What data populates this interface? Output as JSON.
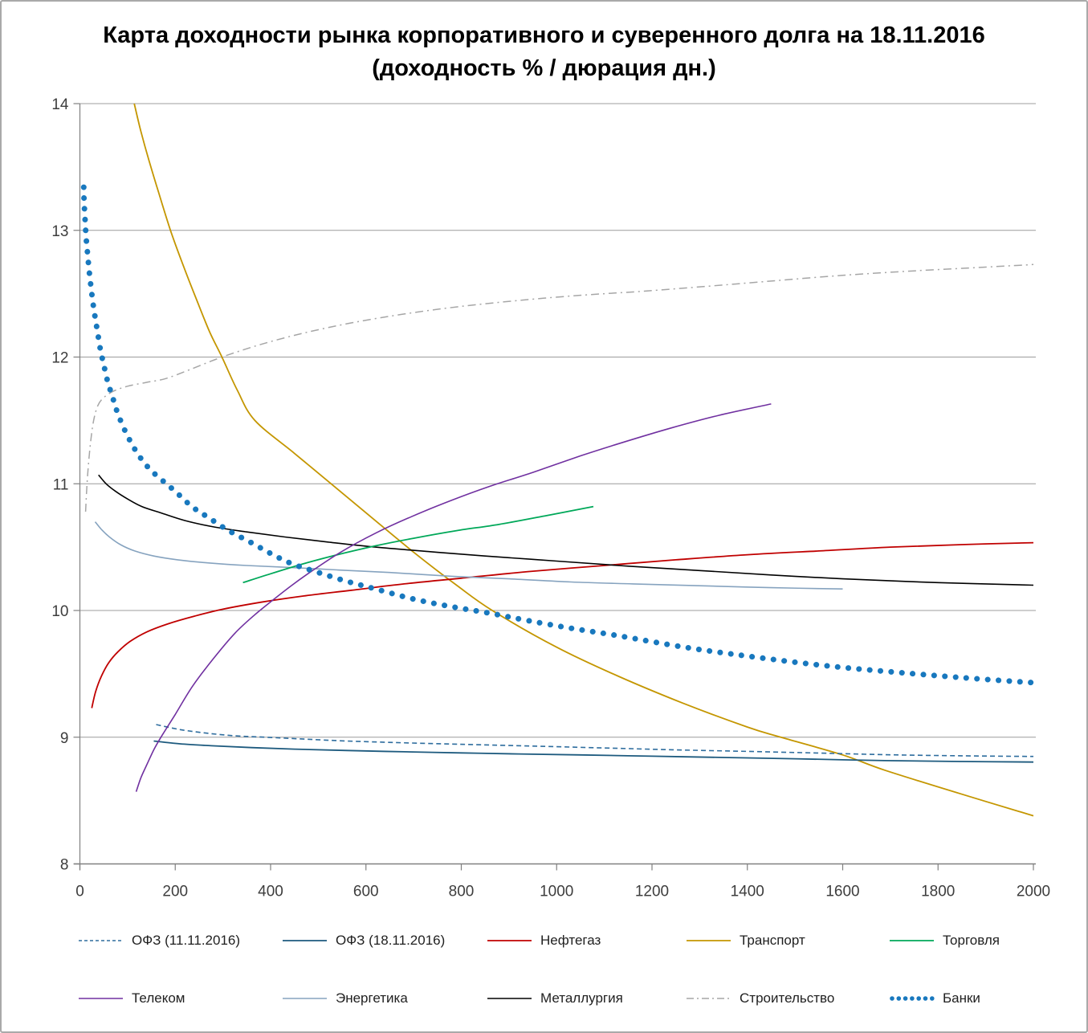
{
  "window": {
    "background": "#ffffff",
    "border_color": "#a9a9a9"
  },
  "chart_data": {
    "type": "line",
    "title": "Карта доходности рынка корпоративного и суверенного долга на 18.11.2016 (доходность % / дюрация дн.)",
    "xlabel": "",
    "ylabel": "",
    "xlim": [
      0,
      2000
    ],
    "ylim": [
      8,
      14
    ],
    "x_ticks": [
      0,
      200,
      400,
      600,
      800,
      1000,
      1200,
      1400,
      1600,
      1800,
      2000
    ],
    "y_ticks": [
      8,
      9,
      10,
      11,
      12,
      13,
      14
    ],
    "grid": true,
    "legend_position": "bottom",
    "axis_color": "#808080",
    "grid_color": "#9c9c9c",
    "tick_label_color": "#3d3d3d",
    "series": [
      {
        "id": "ofz-11",
        "name": "ОФЗ (11.11.2016)",
        "color": "#2E6D9E",
        "style": "dashed",
        "width": 1.6,
        "points": [
          [
            160,
            9.1
          ],
          [
            210,
            9.06
          ],
          [
            270,
            9.03
          ],
          [
            330,
            9.01
          ],
          [
            390,
            9.0
          ],
          [
            470,
            8.985
          ],
          [
            560,
            8.97
          ],
          [
            660,
            8.958
          ],
          [
            760,
            8.948
          ],
          [
            842,
            8.94
          ],
          [
            950,
            8.93
          ],
          [
            1100,
            8.915
          ],
          [
            1250,
            8.9
          ],
          [
            1400,
            8.888
          ],
          [
            1550,
            8.875
          ],
          [
            1688,
            8.862
          ],
          [
            1850,
            8.853
          ],
          [
            2000,
            8.848
          ]
        ]
      },
      {
        "id": "ofz-18",
        "name": "ОФЗ (18.11.2016)",
        "color": "#1D5A7E",
        "style": "solid",
        "width": 1.8,
        "points": [
          [
            155,
            8.97
          ],
          [
            210,
            8.948
          ],
          [
            280,
            8.932
          ],
          [
            360,
            8.918
          ],
          [
            450,
            8.906
          ],
          [
            560,
            8.895
          ],
          [
            680,
            8.885
          ],
          [
            800,
            8.876
          ],
          [
            920,
            8.868
          ],
          [
            1050,
            8.86
          ],
          [
            1200,
            8.85
          ],
          [
            1350,
            8.84
          ],
          [
            1500,
            8.83
          ],
          [
            1688,
            8.815
          ],
          [
            1850,
            8.808
          ],
          [
            2000,
            8.804
          ]
        ]
      },
      {
        "id": "neftegaz",
        "name": "Нефтегаз",
        "color": "#C00000",
        "style": "solid",
        "width": 1.8,
        "points": [
          [
            25,
            9.23
          ],
          [
            33,
            9.36
          ],
          [
            45,
            9.48
          ],
          [
            60,
            9.585
          ],
          [
            80,
            9.675
          ],
          [
            105,
            9.755
          ],
          [
            140,
            9.83
          ],
          [
            185,
            9.895
          ],
          [
            240,
            9.955
          ],
          [
            300,
            10.01
          ],
          [
            380,
            10.065
          ],
          [
            470,
            10.115
          ],
          [
            570,
            10.16
          ],
          [
            680,
            10.21
          ],
          [
            800,
            10.255
          ],
          [
            950,
            10.31
          ],
          [
            1100,
            10.355
          ],
          [
            1250,
            10.4
          ],
          [
            1400,
            10.44
          ],
          [
            1550,
            10.47
          ],
          [
            1700,
            10.5
          ],
          [
            1850,
            10.52
          ],
          [
            2000,
            10.535
          ]
        ]
      },
      {
        "id": "transport",
        "name": "Транспорт",
        "color": "#C49600",
        "style": "solid",
        "width": 1.8,
        "points": [
          [
            114,
            14.0
          ],
          [
            128,
            13.78
          ],
          [
            145,
            13.55
          ],
          [
            165,
            13.3
          ],
          [
            190,
            13.0
          ],
          [
            215,
            12.74
          ],
          [
            245,
            12.45
          ],
          [
            272,
            12.2
          ],
          [
            298,
            12.0
          ],
          [
            330,
            11.74
          ],
          [
            367,
            11.5
          ],
          [
            450,
            11.24
          ],
          [
            527,
            11.0
          ],
          [
            610,
            10.74
          ],
          [
            700,
            10.46
          ],
          [
            790,
            10.2
          ],
          [
            865,
            10.0
          ],
          [
            1000,
            9.71
          ],
          [
            1130,
            9.48
          ],
          [
            1264,
            9.27
          ],
          [
            1400,
            9.08
          ],
          [
            1470,
            9.0
          ],
          [
            1600,
            8.86
          ],
          [
            1688,
            8.74
          ],
          [
            1850,
            8.55
          ],
          [
            2000,
            8.38
          ]
        ]
      },
      {
        "id": "torgovlya",
        "name": "Торговля",
        "color": "#00A859",
        "style": "solid",
        "width": 1.8,
        "points": [
          [
            342,
            10.22
          ],
          [
            400,
            10.29
          ],
          [
            470,
            10.37
          ],
          [
            540,
            10.44
          ],
          [
            620,
            10.51
          ],
          [
            700,
            10.57
          ],
          [
            790,
            10.63
          ],
          [
            880,
            10.68
          ],
          [
            980,
            10.75
          ],
          [
            1077,
            10.82
          ]
        ]
      },
      {
        "id": "telekom",
        "name": "Телеком",
        "color": "#7030A0",
        "style": "solid",
        "width": 1.6,
        "points": [
          [
            118,
            8.57
          ],
          [
            128,
            8.68
          ],
          [
            140,
            8.78
          ],
          [
            155,
            8.9
          ],
          [
            170,
            9.0
          ],
          [
            200,
            9.18
          ],
          [
            236,
            9.4
          ],
          [
            280,
            9.62
          ],
          [
            325,
            9.82
          ],
          [
            365,
            9.96
          ],
          [
            404,
            10.08
          ],
          [
            445,
            10.2
          ],
          [
            486,
            10.31
          ],
          [
            547,
            10.46
          ],
          [
            620,
            10.61
          ],
          [
            695,
            10.74
          ],
          [
            780,
            10.87
          ],
          [
            860,
            10.98
          ],
          [
            950,
            11.09
          ],
          [
            1050,
            11.22
          ],
          [
            1133,
            11.32
          ],
          [
            1240,
            11.44
          ],
          [
            1340,
            11.54
          ],
          [
            1450,
            11.63
          ]
        ]
      },
      {
        "id": "energetika",
        "name": "Энергетика",
        "color": "#86A3BF",
        "style": "solid",
        "width": 1.6,
        "points": [
          [
            32,
            10.7
          ],
          [
            45,
            10.64
          ],
          [
            62,
            10.58
          ],
          [
            85,
            10.52
          ],
          [
            115,
            10.47
          ],
          [
            155,
            10.43
          ],
          [
            205,
            10.4
          ],
          [
            270,
            10.375
          ],
          [
            350,
            10.355
          ],
          [
            440,
            10.34
          ],
          [
            540,
            10.32
          ],
          [
            650,
            10.3
          ],
          [
            780,
            10.27
          ],
          [
            900,
            10.25
          ],
          [
            1030,
            10.225
          ],
          [
            1160,
            10.21
          ],
          [
            1300,
            10.195
          ],
          [
            1450,
            10.18
          ],
          [
            1600,
            10.17
          ]
        ]
      },
      {
        "id": "metallurgiya",
        "name": "Металлургия",
        "color": "#000000",
        "style": "solid",
        "width": 1.6,
        "points": [
          [
            39,
            11.07
          ],
          [
            55,
            11.0
          ],
          [
            75,
            10.94
          ],
          [
            100,
            10.88
          ],
          [
            130,
            10.82
          ],
          [
            170,
            10.77
          ],
          [
            220,
            10.71
          ],
          [
            280,
            10.66
          ],
          [
            350,
            10.62
          ],
          [
            430,
            10.58
          ],
          [
            520,
            10.54
          ],
          [
            620,
            10.5
          ],
          [
            730,
            10.465
          ],
          [
            850,
            10.43
          ],
          [
            1000,
            10.39
          ],
          [
            1150,
            10.35
          ],
          [
            1300,
            10.315
          ],
          [
            1450,
            10.28
          ],
          [
            1600,
            10.25
          ],
          [
            1800,
            10.22
          ],
          [
            2000,
            10.2
          ]
        ]
      },
      {
        "id": "stroitelstvo",
        "name": "Строительство",
        "color": "#A6A6A6",
        "style": "dashdot",
        "width": 1.5,
        "points": [
          [
            12,
            10.78
          ],
          [
            15,
            11.0
          ],
          [
            19,
            11.2
          ],
          [
            24,
            11.38
          ],
          [
            30,
            11.52
          ],
          [
            38,
            11.62
          ],
          [
            50,
            11.68
          ],
          [
            70,
            11.73
          ],
          [
            100,
            11.77
          ],
          [
            140,
            11.8
          ],
          [
            180,
            11.83
          ],
          [
            230,
            11.9
          ],
          [
            298,
            12.0
          ],
          [
            380,
            12.1
          ],
          [
            470,
            12.19
          ],
          [
            570,
            12.27
          ],
          [
            680,
            12.34
          ],
          [
            800,
            12.4
          ],
          [
            930,
            12.45
          ],
          [
            1060,
            12.49
          ],
          [
            1183,
            12.52
          ],
          [
            1320,
            12.56
          ],
          [
            1450,
            12.6
          ],
          [
            1600,
            12.645
          ],
          [
            1750,
            12.68
          ],
          [
            1900,
            12.71
          ],
          [
            2000,
            12.73
          ]
        ]
      },
      {
        "id": "banki",
        "name": "Банки",
        "color": "#1878BE",
        "style": "dots",
        "width": 7,
        "points": [
          [
            8,
            13.34
          ],
          [
            9,
            13.22
          ],
          [
            11,
            13.08
          ],
          [
            13,
            12.95
          ],
          [
            16,
            12.82
          ],
          [
            20,
            12.66
          ],
          [
            25,
            12.5
          ],
          [
            30,
            12.36
          ],
          [
            36,
            12.22
          ],
          [
            43,
            12.06
          ],
          [
            50,
            11.94
          ],
          [
            58,
            11.81
          ],
          [
            68,
            11.69
          ],
          [
            78,
            11.57
          ],
          [
            92,
            11.44
          ],
          [
            108,
            11.32
          ],
          [
            126,
            11.21
          ],
          [
            148,
            11.11
          ],
          [
            175,
            11.02
          ],
          [
            200,
            10.94
          ],
          [
            235,
            10.82
          ],
          [
            271,
            10.73
          ],
          [
            312,
            10.63
          ],
          [
            357,
            10.54
          ],
          [
            400,
            10.45
          ],
          [
            444,
            10.37
          ],
          [
            500,
            10.3
          ],
          [
            560,
            10.23
          ],
          [
            620,
            10.17
          ],
          [
            700,
            10.09
          ],
          [
            780,
            10.03
          ],
          [
            858,
            9.98
          ],
          [
            940,
            9.92
          ],
          [
            1030,
            9.86
          ],
          [
            1130,
            9.8
          ],
          [
            1268,
            9.71
          ],
          [
            1400,
            9.64
          ],
          [
            1550,
            9.57
          ],
          [
            1688,
            9.52
          ],
          [
            1850,
            9.47
          ],
          [
            2000,
            9.43
          ]
        ]
      }
    ],
    "legend_rows": [
      [
        "ofz-11",
        "ofz-18",
        "neftegaz",
        "transport",
        "torgovlya"
      ],
      [
        "telekom",
        "energetika",
        "metallurgiya",
        "stroitelstvo",
        "banki"
      ]
    ]
  }
}
